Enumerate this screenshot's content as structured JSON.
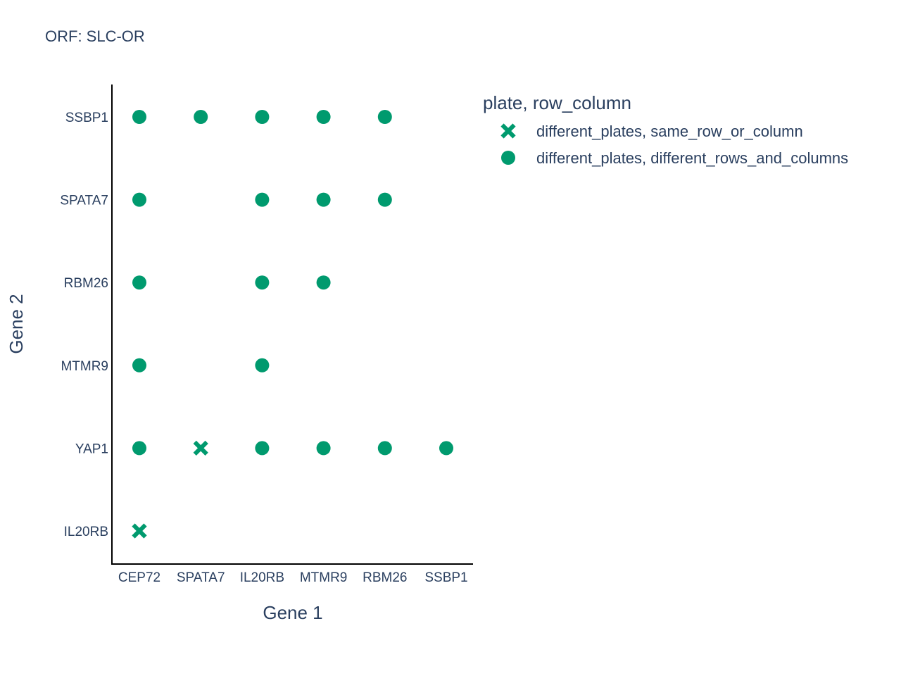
{
  "chart_data": {
    "type": "scatter",
    "title": "ORF: SLC-OR",
    "xlabel": "Gene 1",
    "ylabel": "Gene 2",
    "x_categories": [
      "CEP72",
      "SPATA7",
      "IL20RB",
      "MTMR9",
      "RBM26",
      "SSBP1"
    ],
    "y_categories": [
      "IL20RB",
      "YAP1",
      "MTMR9",
      "RBM26",
      "SPATA7",
      "SSBP1"
    ],
    "marker_color": "#009a6e",
    "grid": false,
    "legend": {
      "title": "plate, row_column",
      "placement": "top-right"
    },
    "series": [
      {
        "name": "different_plates, same_row_or_column",
        "marker": "x",
        "points": [
          {
            "x": "SPATA7",
            "y": "YAP1"
          },
          {
            "x": "CEP72",
            "y": "IL20RB"
          }
        ]
      },
      {
        "name": "different_plates, different_rows_and_columns",
        "marker": "circle",
        "points": [
          {
            "x": "CEP72",
            "y": "SSBP1"
          },
          {
            "x": "SPATA7",
            "y": "SSBP1"
          },
          {
            "x": "IL20RB",
            "y": "SSBP1"
          },
          {
            "x": "MTMR9",
            "y": "SSBP1"
          },
          {
            "x": "RBM26",
            "y": "SSBP1"
          },
          {
            "x": "CEP72",
            "y": "SPATA7"
          },
          {
            "x": "IL20RB",
            "y": "SPATA7"
          },
          {
            "x": "MTMR9",
            "y": "SPATA7"
          },
          {
            "x": "RBM26",
            "y": "SPATA7"
          },
          {
            "x": "CEP72",
            "y": "RBM26"
          },
          {
            "x": "IL20RB",
            "y": "RBM26"
          },
          {
            "x": "MTMR9",
            "y": "RBM26"
          },
          {
            "x": "CEP72",
            "y": "MTMR9"
          },
          {
            "x": "IL20RB",
            "y": "MTMR9"
          },
          {
            "x": "CEP72",
            "y": "YAP1"
          },
          {
            "x": "IL20RB",
            "y": "YAP1"
          },
          {
            "x": "MTMR9",
            "y": "YAP1"
          },
          {
            "x": "RBM26",
            "y": "YAP1"
          },
          {
            "x": "SSBP1",
            "y": "YAP1"
          }
        ]
      }
    ]
  }
}
